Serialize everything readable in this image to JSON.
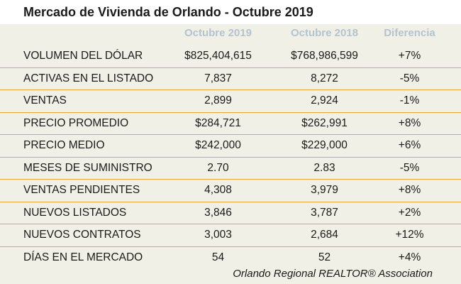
{
  "title": "Mercado de Vivienda de Orlando - Octubre 2019",
  "columns": {
    "current": "Octubre 2019",
    "previous": "Octubre 2018",
    "difference": "Diferencia"
  },
  "rows": [
    {
      "label": "VOLUMEN DEL DÓLAR",
      "current": "$825,404,615",
      "previous": "$768,986,599",
      "difference": "+7%"
    },
    {
      "label": "ACTIVAS EN EL LISTADO",
      "current": "7,837",
      "previous": "8,272",
      "difference": "-5%"
    },
    {
      "label": "VENTAS",
      "current": "2,899",
      "previous": "2,924",
      "difference": "-1%"
    },
    {
      "label": "PRECIO PROMEDIO",
      "current": "$284,721",
      "previous": "$262,991",
      "difference": "+8%"
    },
    {
      "label": "PRECIO MEDIO",
      "current": "$242,000",
      "previous": "$229,000",
      "difference": "+6%"
    },
    {
      "label": "MESES DE SUMINISTRO",
      "current": "2.70",
      "previous": "2.83",
      "difference": "-5%"
    },
    {
      "label": "VENTAS PENDIENTES",
      "current": "4,308",
      "previous": "3,979",
      "difference": "+8%"
    },
    {
      "label": "NUEVOS LISTADOS",
      "current": "3,846",
      "previous": "3,787",
      "difference": "+2%"
    },
    {
      "label": "NUEVOS CONTRATOS",
      "current": "3,003",
      "previous": "2,684",
      "difference": "+12%"
    },
    {
      "label": "DÍAS EN EL MERCADO",
      "current": "54",
      "previous": "52",
      "difference": "+4%"
    }
  ],
  "footer": "Orlando Regional REALTOR® Association",
  "colors": {
    "background": "#f1f0e7",
    "header_text": "#b3c3d0",
    "divider": "#f2a33a"
  }
}
